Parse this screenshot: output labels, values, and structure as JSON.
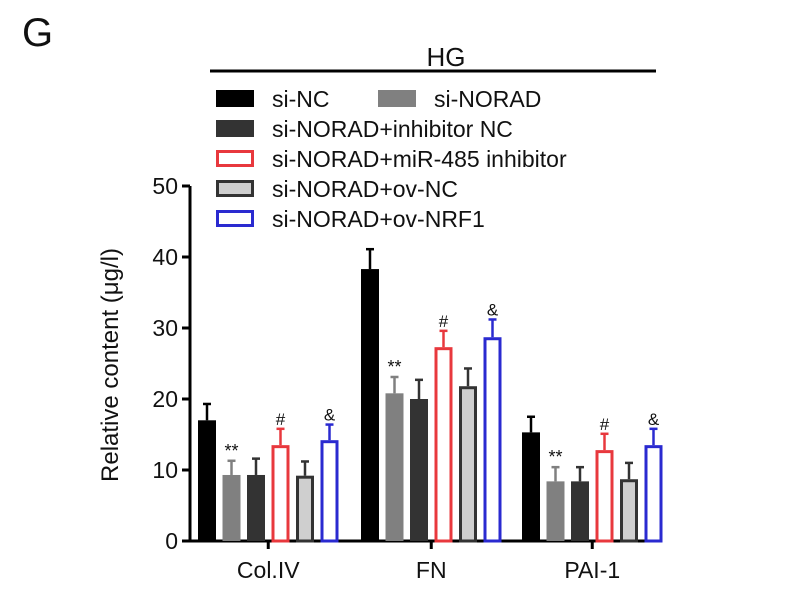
{
  "panel_label": "G",
  "chart_data": {
    "type": "bar",
    "title": "HG",
    "xlabel": "",
    "ylabel": "Relative content (μg/l)",
    "ylim": [
      0,
      50
    ],
    "yticks": [
      0,
      10,
      20,
      30,
      40,
      50
    ],
    "categories": [
      "Col.IV",
      "FN",
      "PAI-1"
    ],
    "legend_position": "top",
    "series": [
      {
        "name": "si-NC",
        "fill": "#000000",
        "stroke": "#000000",
        "values": [
          17.0,
          38.3,
          15.3
        ],
        "errors": [
          2.3,
          2.8,
          2.2
        ],
        "annotation": ""
      },
      {
        "name": "si-NORAD",
        "fill": "#808080",
        "stroke": "#808080",
        "values": [
          9.3,
          20.8,
          8.4
        ],
        "errors": [
          2.0,
          2.3,
          2.0
        ],
        "annotation": "**"
      },
      {
        "name": "si-NORAD+inhibitor NC",
        "fill": "#333333",
        "stroke": "#333333",
        "values": [
          9.3,
          20.0,
          8.4
        ],
        "errors": [
          2.3,
          2.7,
          2.0
        ],
        "annotation": ""
      },
      {
        "name": "si-NORAD+miR-485 inhibitor",
        "fill": "#ffffff",
        "stroke": "#e8383d",
        "values": [
          13.5,
          27.3,
          12.8
        ],
        "errors": [
          2.3,
          2.3,
          2.3
        ],
        "annotation": "#"
      },
      {
        "name": "si-NORAD+ov-NC",
        "fill": "#cfcfcf",
        "stroke": "#333333",
        "values": [
          9.2,
          21.8,
          8.7
        ],
        "errors": [
          2.0,
          2.5,
          2.3
        ],
        "annotation": ""
      },
      {
        "name": "si-NORAD+ov-NRF1",
        "fill": "#ffffff",
        "stroke": "#2a2ad0",
        "values": [
          14.2,
          28.7,
          13.5
        ],
        "errors": [
          2.2,
          2.5,
          2.3
        ],
        "annotation": "&"
      }
    ]
  }
}
